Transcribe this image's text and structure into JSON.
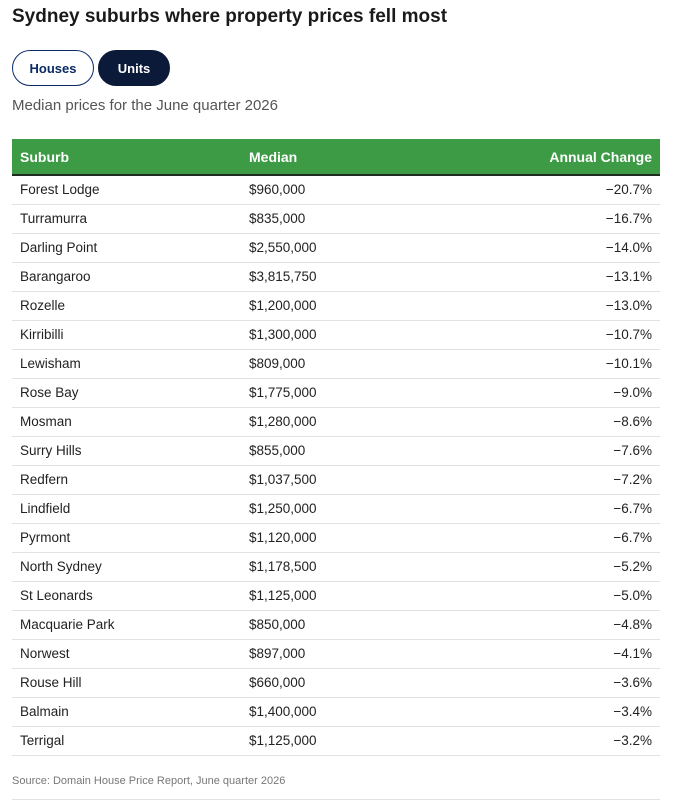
{
  "title": "Sydney suburbs where property prices fell most",
  "tabs": {
    "houses": "Houses",
    "units": "Units",
    "selected": "Units"
  },
  "subtitle": "Median prices for the June quarter 2026",
  "table": {
    "headers": {
      "suburb": "Suburb",
      "median": "Median",
      "change": "Annual Change"
    },
    "rows": [
      [
        "Forest Lodge",
        "$960,000",
        "−20.7%"
      ],
      [
        "Turramurra",
        "$835,000",
        "−16.7%"
      ],
      [
        "Darling Point",
        "$2,550,000",
        "−14.0%"
      ],
      [
        "Barangaroo",
        "$3,815,750",
        "−13.1%"
      ],
      [
        "Rozelle",
        "$1,200,000",
        "−13.0%"
      ],
      [
        "Kirribilli",
        "$1,300,000",
        "−10.7%"
      ],
      [
        "Lewisham",
        "$809,000",
        "−10.1%"
      ],
      [
        "Rose Bay",
        "$1,775,000",
        "−9.0%"
      ],
      [
        "Mosman",
        "$1,280,000",
        "−8.6%"
      ],
      [
        "Surry Hills",
        "$855,000",
        "−7.6%"
      ],
      [
        "Redfern",
        "$1,037,500",
        "−7.2%"
      ],
      [
        "Lindfield",
        "$1,250,000",
        "−6.7%"
      ],
      [
        "Pyrmont",
        "$1,120,000",
        "−6.7%"
      ],
      [
        "North Sydney",
        "$1,178,500",
        "−5.2%"
      ],
      [
        "St Leonards",
        "$1,125,000",
        "−5.0%"
      ],
      [
        "Macquarie Park",
        "$850,000",
        "−4.8%"
      ],
      [
        "Norwest",
        "$897,000",
        "−4.1%"
      ],
      [
        "Rouse Hill",
        "$660,000",
        "−3.6%"
      ],
      [
        "Balmain",
        "$1,400,000",
        "−3.4%"
      ],
      [
        "Terrigal",
        "$1,125,000",
        "−3.2%"
      ]
    ]
  },
  "source": "Source: Domain House Price Report, June quarter 2026",
  "colors": {
    "header_bg": "#3d9a45",
    "units_tab_bg": "#0c1a3a",
    "houses_tab_border": "#0b2a66"
  }
}
